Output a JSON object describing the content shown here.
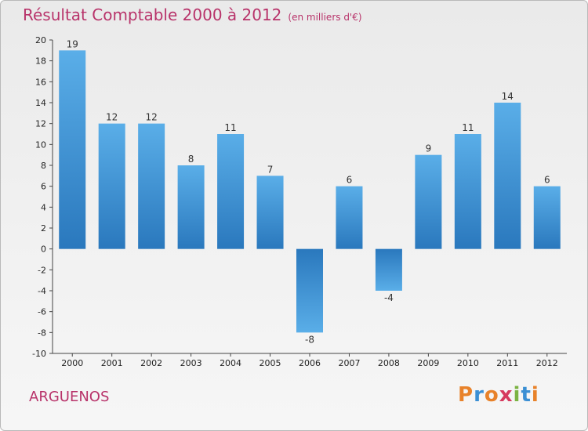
{
  "header": {
    "title": "Résultat Comptable 2000 à 2012",
    "subtitle": "(en milliers d'€)"
  },
  "footer": {
    "commune": "ARGUENOS",
    "logo_letters": [
      "P",
      "r",
      "o",
      "x",
      "i",
      "t",
      "i"
    ],
    "logo_colors": [
      "#e8822a",
      "#3b8fd4",
      "#e8822a",
      "#d63a5e",
      "#7cb342",
      "#3b8fd4",
      "#e8822a"
    ]
  },
  "colors": {
    "bar_top": "#5aaee8",
    "bar_bottom": "#2a78bd",
    "accent": "#b8336a"
  },
  "chart_data": {
    "type": "bar",
    "title": "Résultat Comptable 2000 à 2012",
    "ylabel": "(en milliers d'€)",
    "xlabel": "",
    "categories": [
      "2000",
      "2001",
      "2002",
      "2003",
      "2004",
      "2005",
      "2006",
      "2007",
      "2008",
      "2009",
      "2010",
      "2011",
      "2012"
    ],
    "values": [
      19,
      12,
      12,
      8,
      11,
      7,
      -8,
      6,
      -4,
      9,
      11,
      14,
      6
    ],
    "value_labels": [
      "19",
      "12",
      "12",
      "8",
      "11",
      "7",
      "-8",
      "6",
      "-4",
      "9",
      "11",
      "14",
      "6"
    ],
    "ylim": [
      -10,
      20
    ],
    "yticks": [
      -10,
      -8,
      -6,
      -4,
      -2,
      0,
      2,
      4,
      6,
      8,
      10,
      12,
      14,
      16,
      18,
      20
    ],
    "ytick_labels": [
      "-10",
      "-8",
      "-6",
      "-4",
      "-2",
      "0",
      "2",
      "4",
      "6",
      "8",
      "10",
      "12",
      "14",
      "16",
      "18",
      "20"
    ],
    "grid": false
  }
}
